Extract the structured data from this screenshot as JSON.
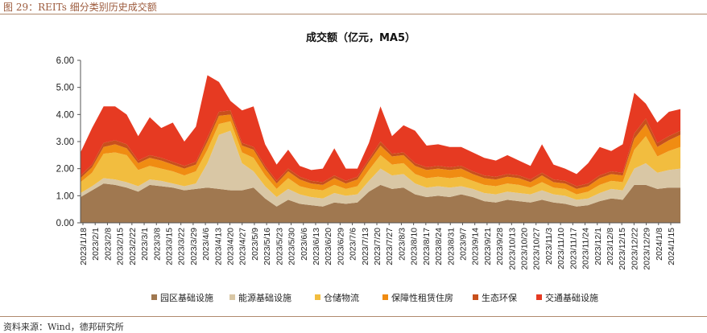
{
  "figure": {
    "title": "图 29：REITs 细分类别历史成交额",
    "source": "资料来源：Wind，德邦研究所"
  },
  "chart_data": {
    "type": "area",
    "stacked": true,
    "title": "成交额（亿元，MA5）",
    "xlabel": "",
    "ylabel": "",
    "ylim": [
      0,
      6
    ],
    "yticks": [
      "0.00",
      "1.00",
      "2.00",
      "3.00",
      "4.00",
      "5.00",
      "6.00"
    ],
    "grid": false,
    "legend_position": "bottom",
    "tick_labels": [
      "2023/1/18",
      "2023/2/1",
      "2023/2/8",
      "2023/2/15",
      "2023/2/22",
      "2023/3/1",
      "2023/3/8",
      "2023/3/15",
      "2023/3/22",
      "2023/3/29",
      "2023/4/6",
      "2023/4/13",
      "2023/4/20",
      "2023/4/27",
      "2023/5/9",
      "2023/5/16",
      "2023/5/23",
      "2023/5/30",
      "2023/6/6",
      "2023/6/13",
      "2023/6/20",
      "2023/6/29",
      "2023/7/6",
      "2023/7/13",
      "2023/7/20",
      "2023/7/27",
      "2023/8/3",
      "2023/8/10",
      "2023/8/17",
      "2023/8/24",
      "2023/8/31",
      "2023/9/7",
      "2023/9/14",
      "2023/9/21",
      "2023/9/28",
      "2023/10/13",
      "2023/10/20",
      "2023/10/27",
      "2023/11/3",
      "2023/11/10",
      "2023/11/17",
      "2023/11/24",
      "2023/12/1",
      "2023/12/8",
      "2023/12/15",
      "2023/12/22",
      "2023/12/29",
      "2024/1/8",
      "2024/1/15"
    ],
    "x": [
      "2023/1/18",
      "2023/1/25",
      "2023/2/1",
      "2023/2/8",
      "2023/2/15",
      "2023/2/22",
      "2023/3/1",
      "2023/3/8",
      "2023/3/15",
      "2023/3/22",
      "2023/3/29",
      "2023/3/31",
      "2023/4/3",
      "2023/4/6",
      "2023/4/13",
      "2023/4/20",
      "2023/4/27",
      "2023/5/9",
      "2023/5/16",
      "2023/5/23",
      "2023/5/30",
      "2023/6/6",
      "2023/6/13",
      "2023/6/20",
      "2023/6/29",
      "2023/7/6",
      "2023/7/13",
      "2023/7/20",
      "2023/7/27",
      "2023/8/3",
      "2023/8/10",
      "2023/8/17",
      "2023/8/24",
      "2023/8/31",
      "2023/9/7",
      "2023/9/14",
      "2023/9/21",
      "2023/9/28",
      "2023/10/13",
      "2023/10/20",
      "2023/10/27",
      "2023/11/3",
      "2023/11/10",
      "2023/11/17",
      "2023/11/24",
      "2023/12/1",
      "2023/12/8",
      "2023/12/15",
      "2023/12/22",
      "2023/12/29",
      "2024/1/8",
      "2024/1/15",
      "2024/1/19"
    ],
    "series": [
      {
        "name": "园区基础设施",
        "color": "#a07850",
        "values": [
          0.95,
          1.2,
          1.45,
          1.4,
          1.3,
          1.15,
          1.4,
          1.35,
          1.3,
          1.2,
          1.25,
          1.3,
          1.25,
          1.2,
          1.2,
          1.3,
          0.9,
          0.6,
          0.85,
          0.7,
          0.65,
          0.6,
          0.75,
          0.7,
          0.75,
          1.15,
          1.4,
          1.25,
          1.3,
          1.05,
          0.95,
          1.0,
          0.95,
          1.05,
          0.95,
          0.8,
          0.75,
          0.85,
          0.8,
          0.75,
          0.85,
          0.75,
          0.7,
          0.6,
          0.65,
          0.8,
          0.9,
          0.85,
          1.4,
          1.4,
          1.25,
          1.3,
          1.3
        ]
      },
      {
        "name": "能源基础设施",
        "color": "#d9c7a5",
        "values": [
          0.15,
          0.15,
          0.2,
          0.2,
          0.2,
          0.2,
          0.2,
          0.2,
          0.15,
          0.15,
          0.2,
          0.9,
          2.0,
          2.2,
          1.0,
          0.6,
          0.45,
          0.35,
          0.4,
          0.35,
          0.3,
          0.3,
          0.35,
          0.3,
          0.3,
          0.4,
          0.6,
          0.5,
          0.5,
          0.4,
          0.35,
          0.35,
          0.35,
          0.3,
          0.3,
          0.3,
          0.3,
          0.3,
          0.3,
          0.3,
          0.35,
          0.3,
          0.3,
          0.25,
          0.25,
          0.3,
          0.35,
          0.35,
          0.6,
          0.8,
          0.6,
          0.65,
          0.7
        ]
      },
      {
        "name": "仓储物流",
        "color": "#f2bd3f",
        "values": [
          0.4,
          0.5,
          0.9,
          1.0,
          1.0,
          0.6,
          0.5,
          0.45,
          0.45,
          0.4,
          0.45,
          0.5,
          0.4,
          0.35,
          0.4,
          0.5,
          0.4,
          0.3,
          0.4,
          0.3,
          0.3,
          0.3,
          0.3,
          0.25,
          0.3,
          0.4,
          0.5,
          0.4,
          0.4,
          0.35,
          0.35,
          0.35,
          0.35,
          0.35,
          0.3,
          0.3,
          0.3,
          0.3,
          0.3,
          0.25,
          0.3,
          0.25,
          0.25,
          0.2,
          0.25,
          0.3,
          0.3,
          0.3,
          0.7,
          1.0,
          0.6,
          0.7,
          0.8
        ]
      },
      {
        "name": "保障性租赁住房",
        "color": "#f08c12",
        "values": [
          0.15,
          0.2,
          0.25,
          0.3,
          0.25,
          0.25,
          0.3,
          0.3,
          0.25,
          0.25,
          0.25,
          0.3,
          0.3,
          0.25,
          0.25,
          0.3,
          0.25,
          0.2,
          0.25,
          0.25,
          0.2,
          0.2,
          0.25,
          0.2,
          0.25,
          0.3,
          0.35,
          0.3,
          0.3,
          0.3,
          0.3,
          0.3,
          0.3,
          0.3,
          0.25,
          0.25,
          0.25,
          0.25,
          0.25,
          0.2,
          0.25,
          0.2,
          0.2,
          0.2,
          0.2,
          0.25,
          0.25,
          0.25,
          0.4,
          0.45,
          0.35,
          0.4,
          0.45
        ]
      },
      {
        "name": "生态环保",
        "color": "#c8501c",
        "values": [
          0.1,
          0.1,
          0.15,
          0.15,
          0.15,
          0.1,
          0.1,
          0.1,
          0.1,
          0.1,
          0.1,
          0.15,
          0.15,
          0.15,
          0.1,
          0.1,
          0.1,
          0.1,
          0.1,
          0.1,
          0.1,
          0.1,
          0.1,
          0.1,
          0.1,
          0.1,
          0.15,
          0.1,
          0.1,
          0.1,
          0.1,
          0.1,
          0.1,
          0.1,
          0.1,
          0.1,
          0.1,
          0.1,
          0.1,
          0.1,
          0.1,
          0.1,
          0.1,
          0.1,
          0.1,
          0.1,
          0.1,
          0.1,
          0.2,
          0.2,
          0.15,
          0.15,
          0.15
        ]
      },
      {
        "name": "交通基础设施",
        "color": "#e63a22",
        "values": [
          0.85,
          1.35,
          1.35,
          1.25,
          1.1,
          0.9,
          1.4,
          1.1,
          1.45,
          0.9,
          1.3,
          2.3,
          1.1,
          0.35,
          1.2,
          1.5,
          0.8,
          0.6,
          0.7,
          0.4,
          0.4,
          0.5,
          1.0,
          0.45,
          0.3,
          0.6,
          1.3,
          0.65,
          1.0,
          1.2,
          0.8,
          0.8,
          0.75,
          0.7,
          0.7,
          0.65,
          0.6,
          0.7,
          0.55,
          0.5,
          1.05,
          0.55,
          0.45,
          0.45,
          0.75,
          1.05,
          0.75,
          1.05,
          1.5,
          0.55,
          0.75,
          0.9,
          0.8
        ]
      }
    ]
  }
}
